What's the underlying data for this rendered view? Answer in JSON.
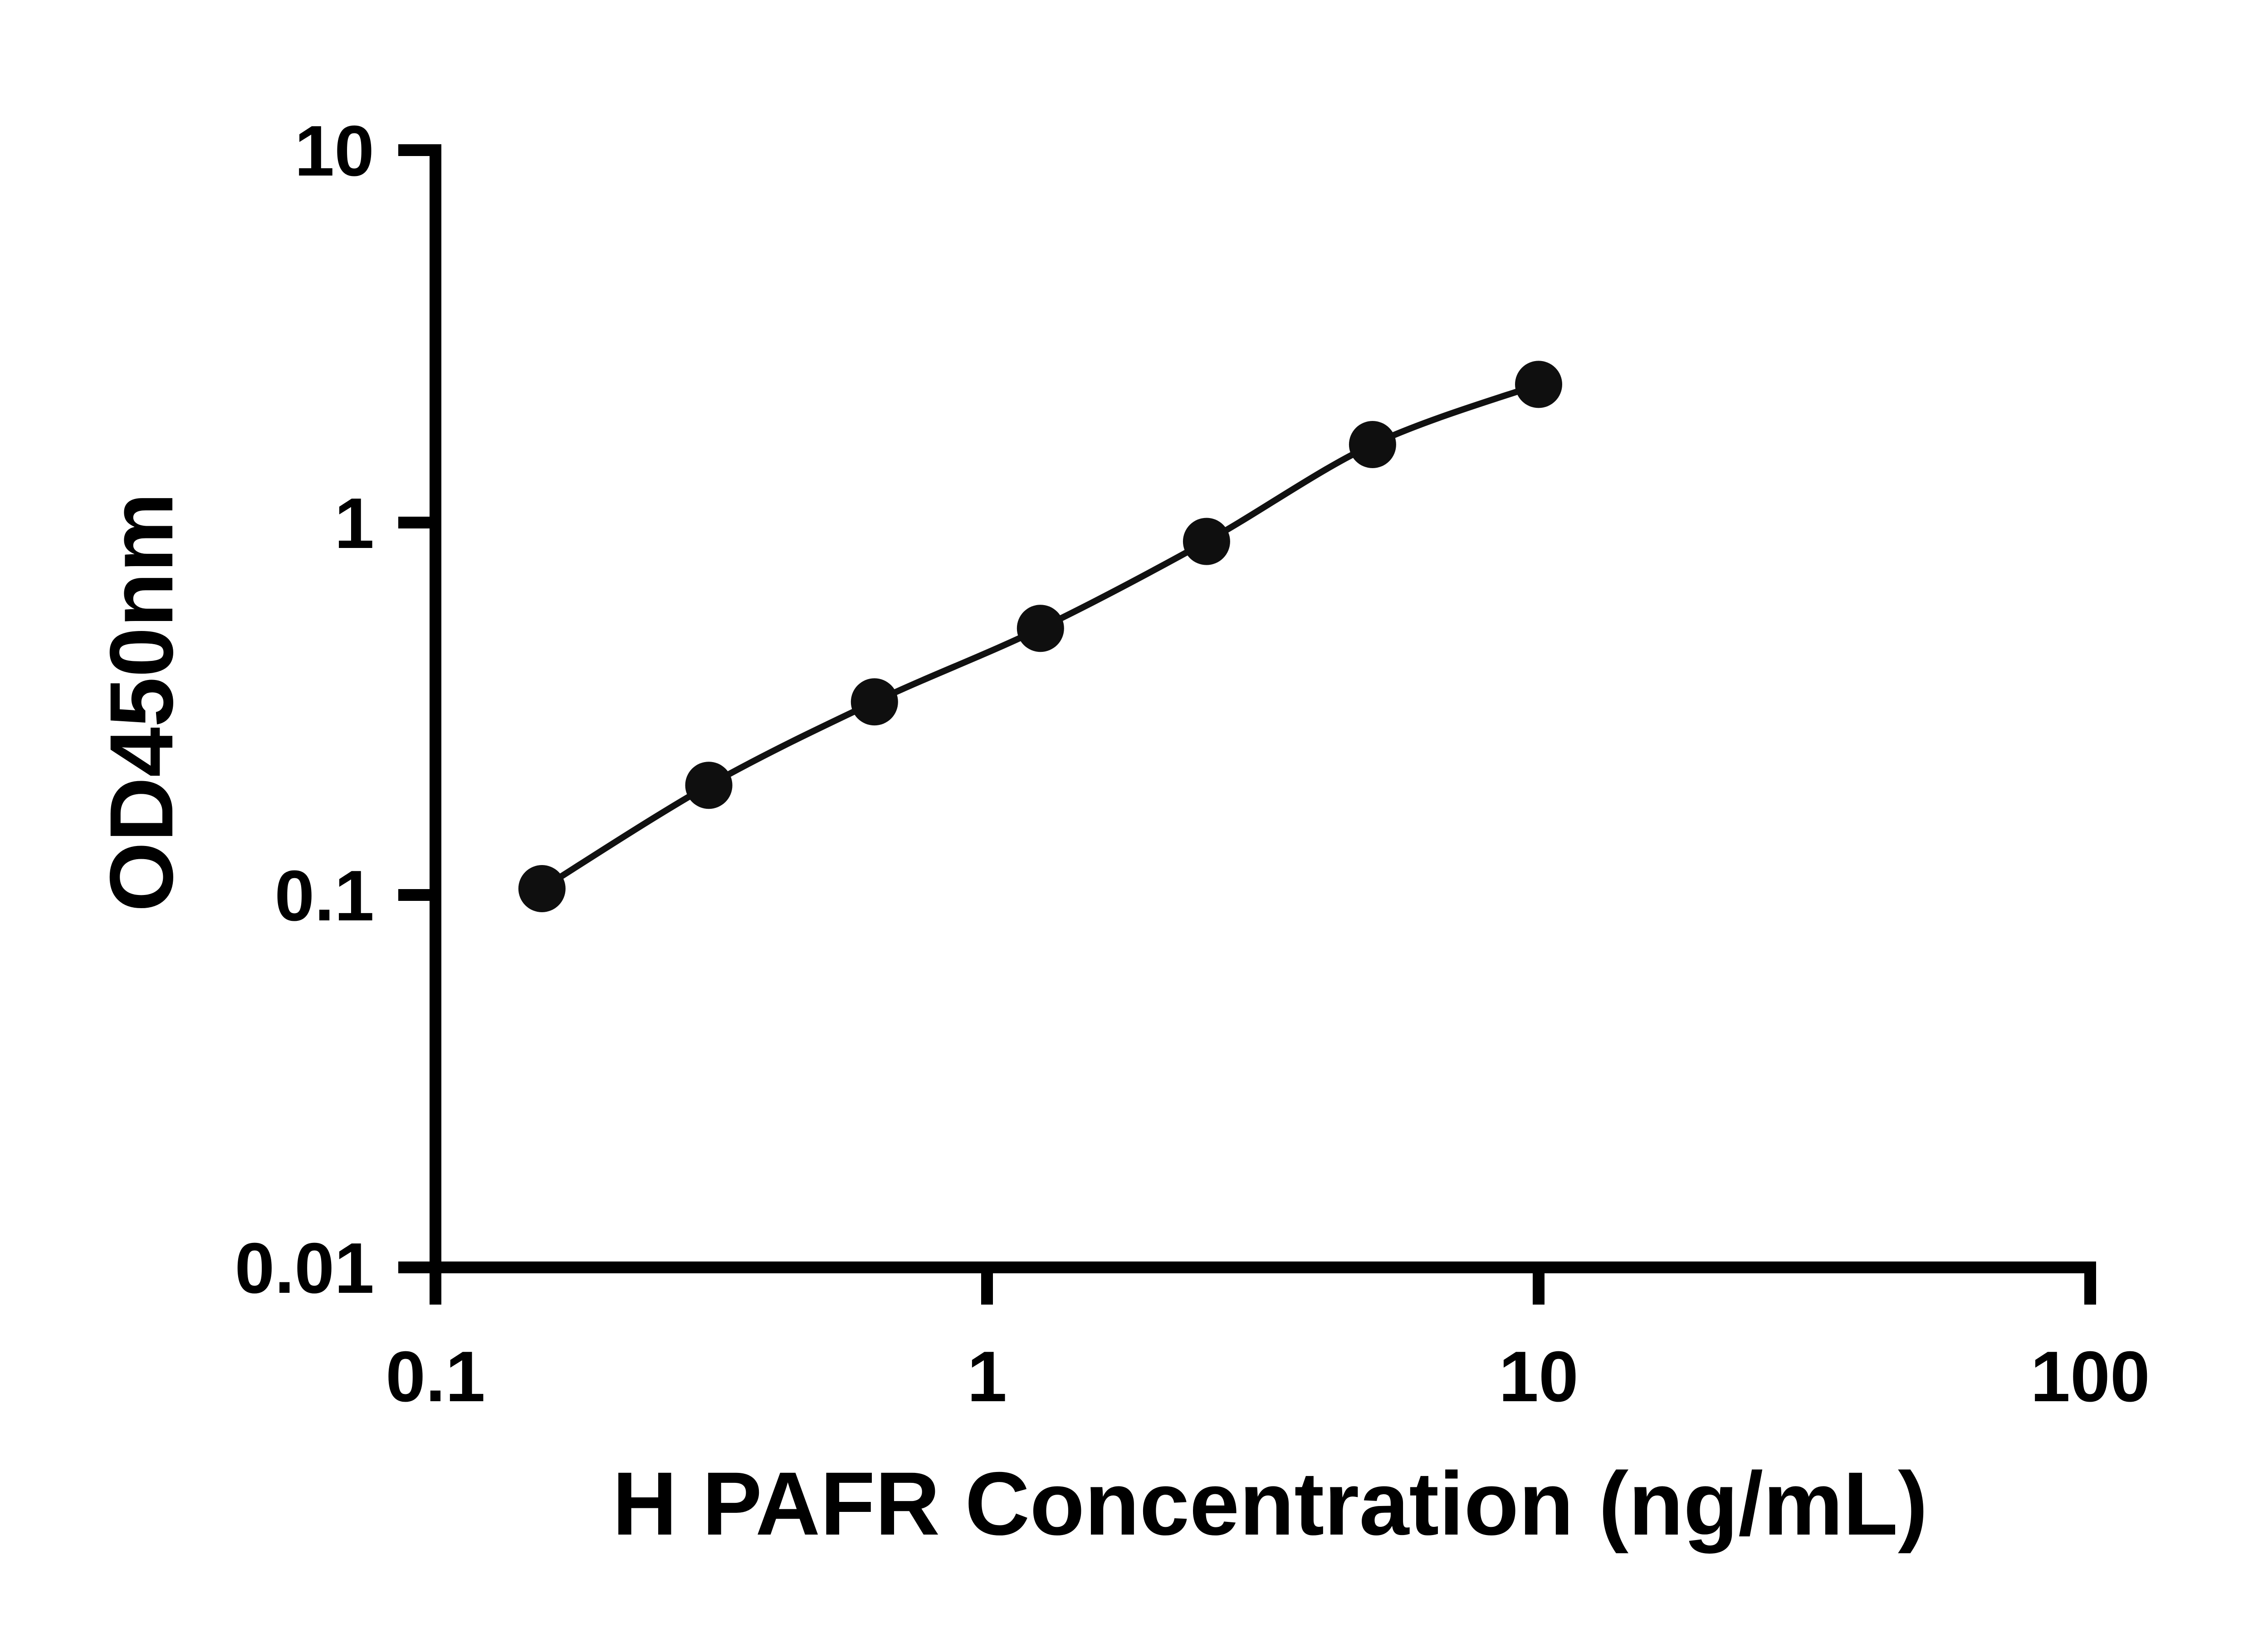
{
  "figure": {
    "background": "#ffffff",
    "axis_color": "#000000",
    "point_color": "#0f0f0f",
    "curve_color": "#111111"
  },
  "chart_data": {
    "type": "scatter",
    "subtype": "standard-curve-with-fit-line",
    "title": "",
    "xlabel": "H PAFR Concentration (ng/mL)",
    "ylabel": "OD450nm",
    "x_scale": "log",
    "y_scale": "log",
    "xlim": [
      0.1,
      100
    ],
    "ylim": [
      0.01,
      10
    ],
    "x_ticks": [
      "0.1",
      "1",
      "10",
      "100"
    ],
    "y_ticks": [
      "10",
      "1",
      "0.1",
      "0.01"
    ],
    "grid": false,
    "legend": false,
    "x": [
      0.156,
      0.313,
      0.625,
      1.25,
      2.5,
      5,
      10
    ],
    "y": [
      0.104,
      0.197,
      0.33,
      0.52,
      0.89,
      1.62,
      2.35
    ]
  }
}
